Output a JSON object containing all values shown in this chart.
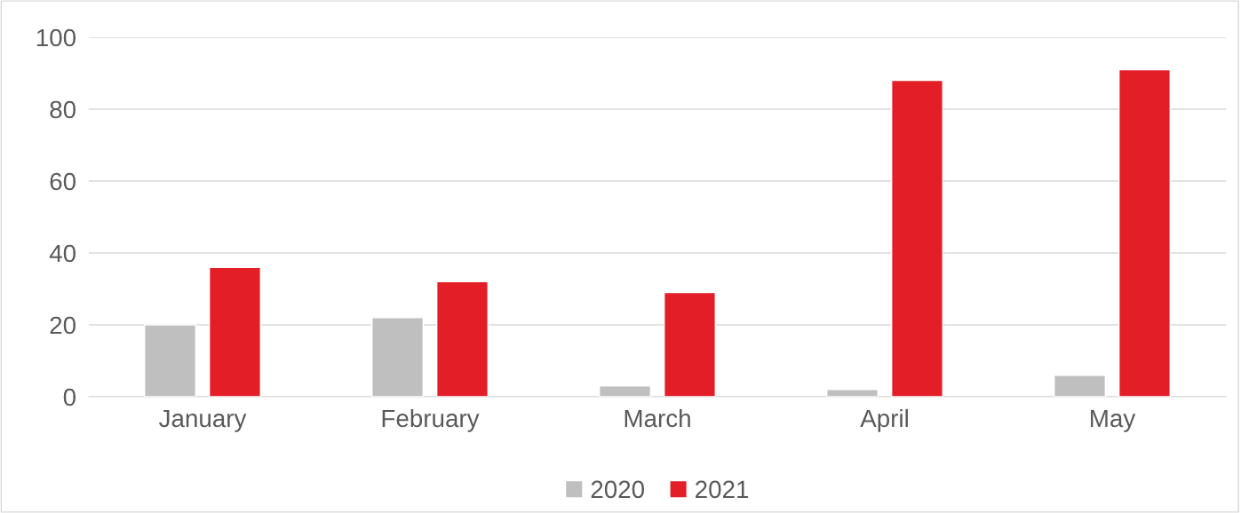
{
  "chart_data": {
    "type": "bar",
    "categories": [
      "January",
      "February",
      "March",
      "April",
      "May"
    ],
    "series": [
      {
        "name": "2020",
        "color": "#bfbfbf",
        "values": [
          20,
          22,
          3,
          2,
          6
        ]
      },
      {
        "name": "2021",
        "color": "#e31e26",
        "values": [
          36,
          32,
          29,
          88,
          91
        ]
      }
    ],
    "ylim": [
      0,
      100
    ],
    "yticks": [
      0,
      20,
      40,
      60,
      80,
      100
    ],
    "grid": "y",
    "legend": "bottom"
  }
}
